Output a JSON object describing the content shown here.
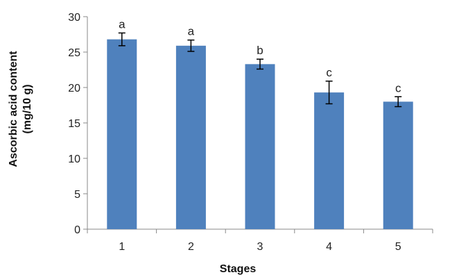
{
  "chart_data": {
    "type": "bar",
    "title": "",
    "xlabel": "Stages",
    "ylabel_line1": "Ascorbic acid content",
    "ylabel_line2": "(mg/10 g)",
    "categories": [
      "1",
      "2",
      "3",
      "4",
      "5"
    ],
    "values": [
      26.8,
      25.9,
      23.3,
      19.3,
      18.0
    ],
    "error": [
      0.9,
      0.8,
      0.7,
      1.6,
      0.7
    ],
    "significance": [
      "a",
      "a",
      "b",
      "c",
      "c"
    ],
    "ylim": [
      0,
      30
    ],
    "yticks": [
      0,
      5,
      10,
      15,
      20,
      25,
      30
    ],
    "grid": false,
    "legend": "none",
    "bar_color": "#4f81bd"
  }
}
